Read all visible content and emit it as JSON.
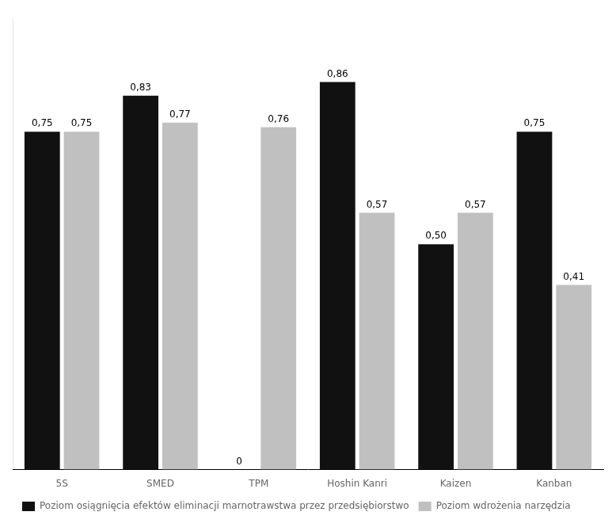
{
  "chart_data": {
    "type": "bar",
    "categories": [
      "5S",
      "SMED",
      "TPM",
      "Hoshin Kanri",
      "Kaizen",
      "Kanban"
    ],
    "series": [
      {
        "name": "Poziom osiągnięcia efektów eliminacji marnotrawstwa przez przedsiębiorstwo",
        "color": "#111111",
        "values": [
          0.75,
          0.83,
          0.0,
          0.86,
          0.5,
          0.75
        ],
        "value_labels": [
          "0,75",
          "0,83",
          "0",
          "0,86",
          "0,50",
          "0,75"
        ]
      },
      {
        "name": "Poziom wdrożenia narzędzia",
        "color": "#c0c0c0",
        "values": [
          0.75,
          0.77,
          0.76,
          0.57,
          0.57,
          0.41
        ],
        "value_labels": [
          "0,75",
          "0,77",
          "0,76",
          "0,57",
          "0,57",
          "0,41"
        ]
      }
    ],
    "ylim": [
      0,
      1.0
    ],
    "grid": false,
    "legend": "lower left",
    "data_labels": true,
    "tick_labels": "x"
  }
}
